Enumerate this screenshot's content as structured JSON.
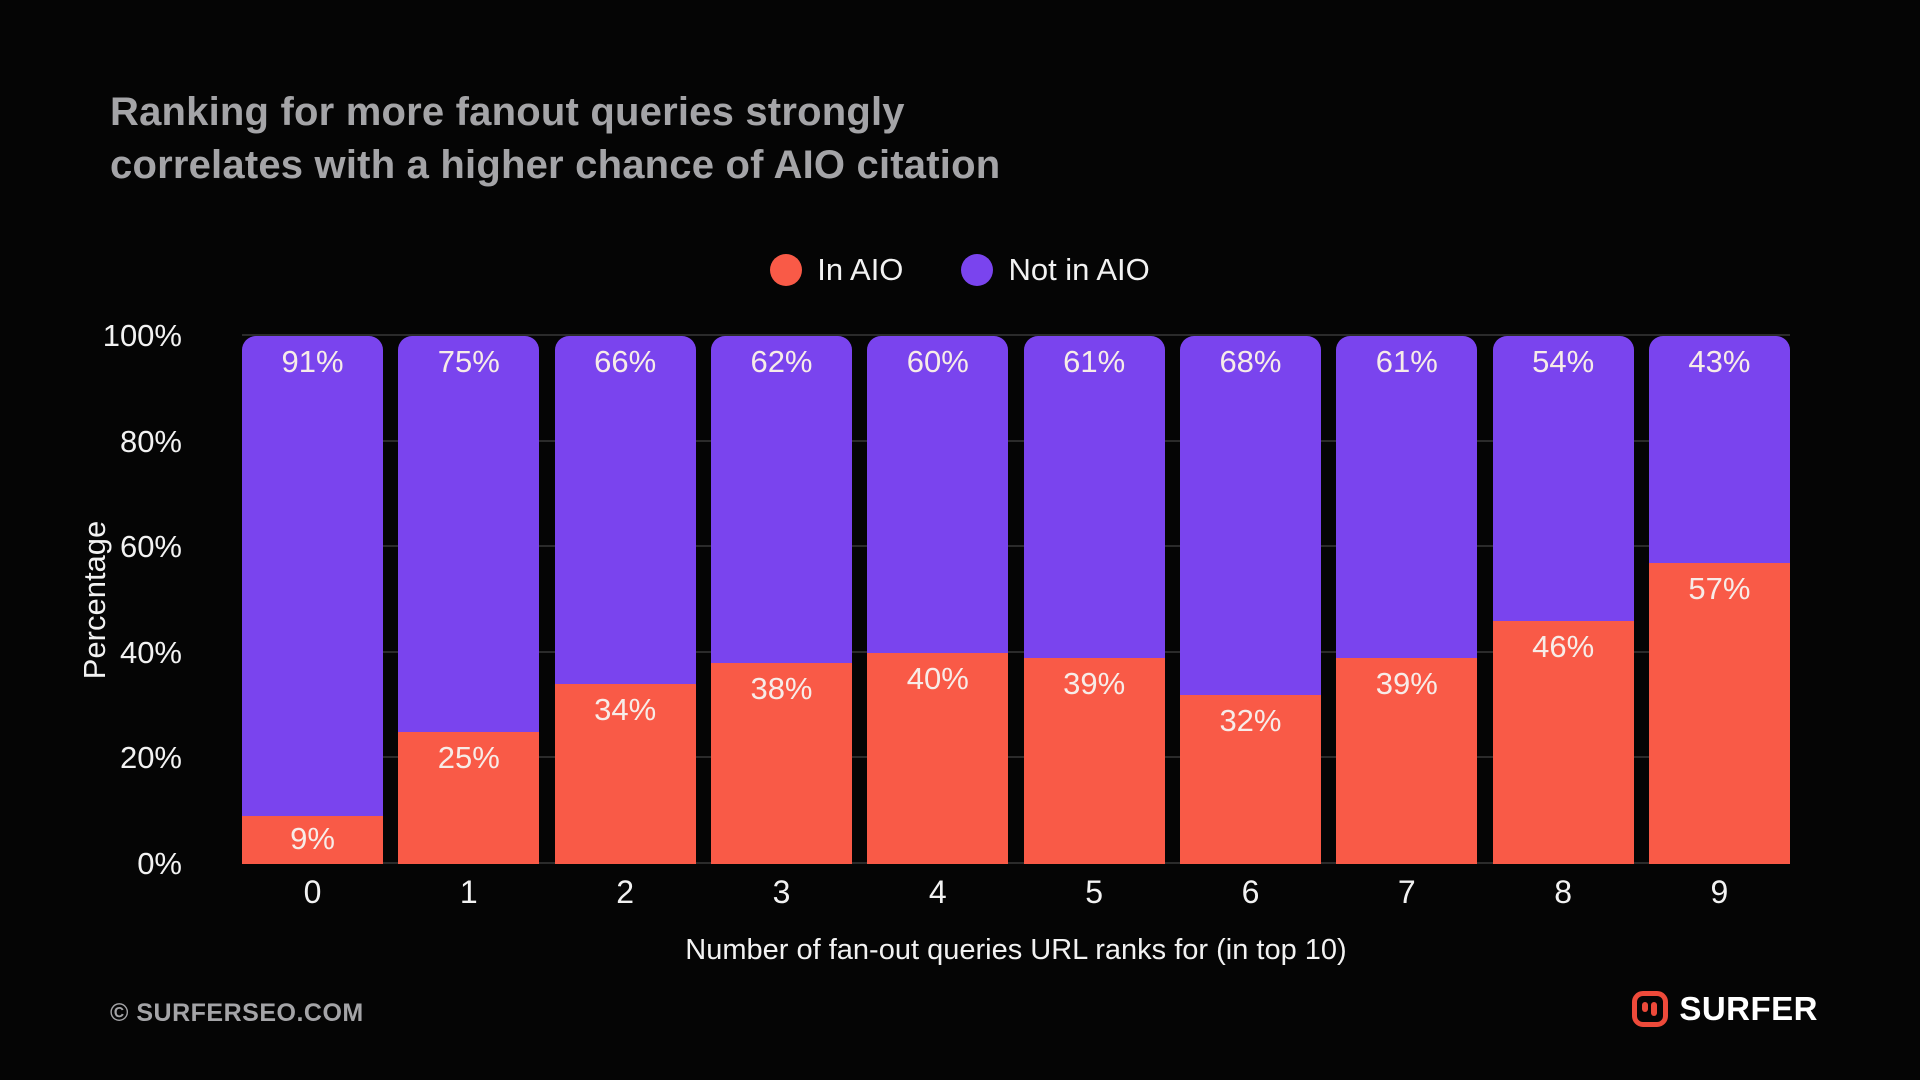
{
  "title": {
    "line1": "Ranking for more fanout queries strongly",
    "line2": "correlates with a higher chance of AIO citation"
  },
  "legend": {
    "items": [
      {
        "label": "In AIO",
        "color": "#F95A47"
      },
      {
        "label": "Not in AIO",
        "color": "#7A44EE"
      }
    ]
  },
  "chart_data": {
    "type": "bar",
    "stacked": true,
    "title": "Ranking for more fanout queries strongly correlates with a higher chance of AIO citation",
    "categories": [
      "0",
      "1",
      "2",
      "3",
      "4",
      "5",
      "6",
      "7",
      "8",
      "9"
    ],
    "series": [
      {
        "name": "In AIO",
        "color": "#F95A47",
        "values": [
          9,
          25,
          34,
          38,
          40,
          39,
          32,
          39,
          46,
          57
        ],
        "labels": [
          "9%",
          "25%",
          "34%",
          "38%",
          "40%",
          "39%",
          "32%",
          "39%",
          "46%",
          "57%"
        ]
      },
      {
        "name": "Not in AIO",
        "color": "#7A44EE",
        "values": [
          91,
          75,
          66,
          62,
          60,
          61,
          68,
          61,
          54,
          43
        ],
        "labels": [
          "91%",
          "75%",
          "66%",
          "62%",
          "60%",
          "61%",
          "68%",
          "61%",
          "54%",
          "43%"
        ]
      }
    ],
    "xlabel": "Number of fan-out queries URL ranks for (in top 10)",
    "ylabel": "Percentage",
    "ylim": [
      0,
      100
    ],
    "yticks": [
      {
        "value": 0,
        "label": "0%"
      },
      {
        "value": 20,
        "label": "20%"
      },
      {
        "value": 40,
        "label": "40%"
      },
      {
        "value": 60,
        "label": "60%"
      },
      {
        "value": 80,
        "label": "80%"
      },
      {
        "value": 100,
        "label": "100%"
      }
    ],
    "legend_position": "top-center",
    "grid": "horizontal-faint",
    "bar_label_color": "#F7ECE8"
  },
  "footer": {
    "copyright": "© SURFERSEO.COM",
    "brand": "SURFER"
  }
}
